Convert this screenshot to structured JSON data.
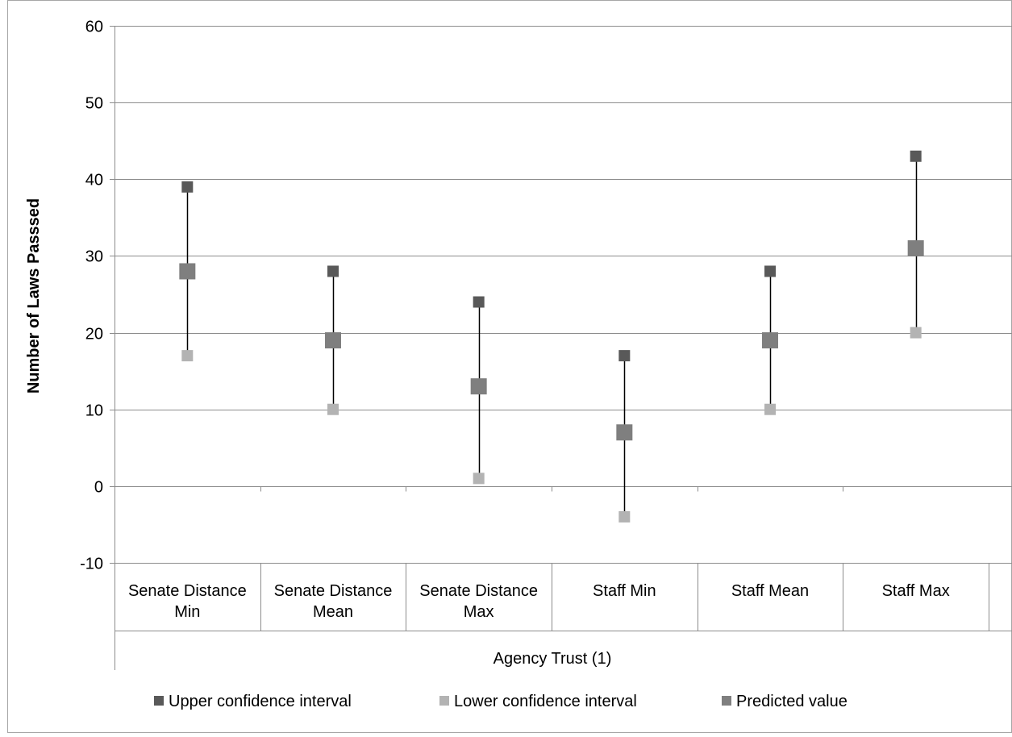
{
  "chart_data": {
    "type": "scatter",
    "ylabel": "Number of Laws Passsed",
    "xlabel": "Agency Trust (1)",
    "ylim": [
      -10,
      60
    ],
    "yticks": [
      -10,
      0,
      10,
      20,
      30,
      40,
      50,
      60
    ],
    "grid": true,
    "legend_position": "bottom",
    "categories": [
      [
        "Senate Distance",
        "Min"
      ],
      [
        "Senate Distance",
        "Mean"
      ],
      [
        "Senate Distance",
        "Max"
      ],
      [
        "Staff Min"
      ],
      [
        "Staff Mean"
      ],
      [
        "Staff Max"
      ]
    ],
    "series": [
      {
        "name": "Upper confidence interval",
        "color": "#595959",
        "values": [
          39,
          28,
          24,
          17,
          28,
          43
        ]
      },
      {
        "name": "Lower confidence interval",
        "color": "#b3b3b3",
        "values": [
          17,
          10,
          1,
          -4,
          10,
          20
        ]
      },
      {
        "name": "Predicted value",
        "color": "#7f7f7f",
        "values": [
          28,
          19,
          13,
          7,
          19,
          31
        ]
      }
    ]
  }
}
